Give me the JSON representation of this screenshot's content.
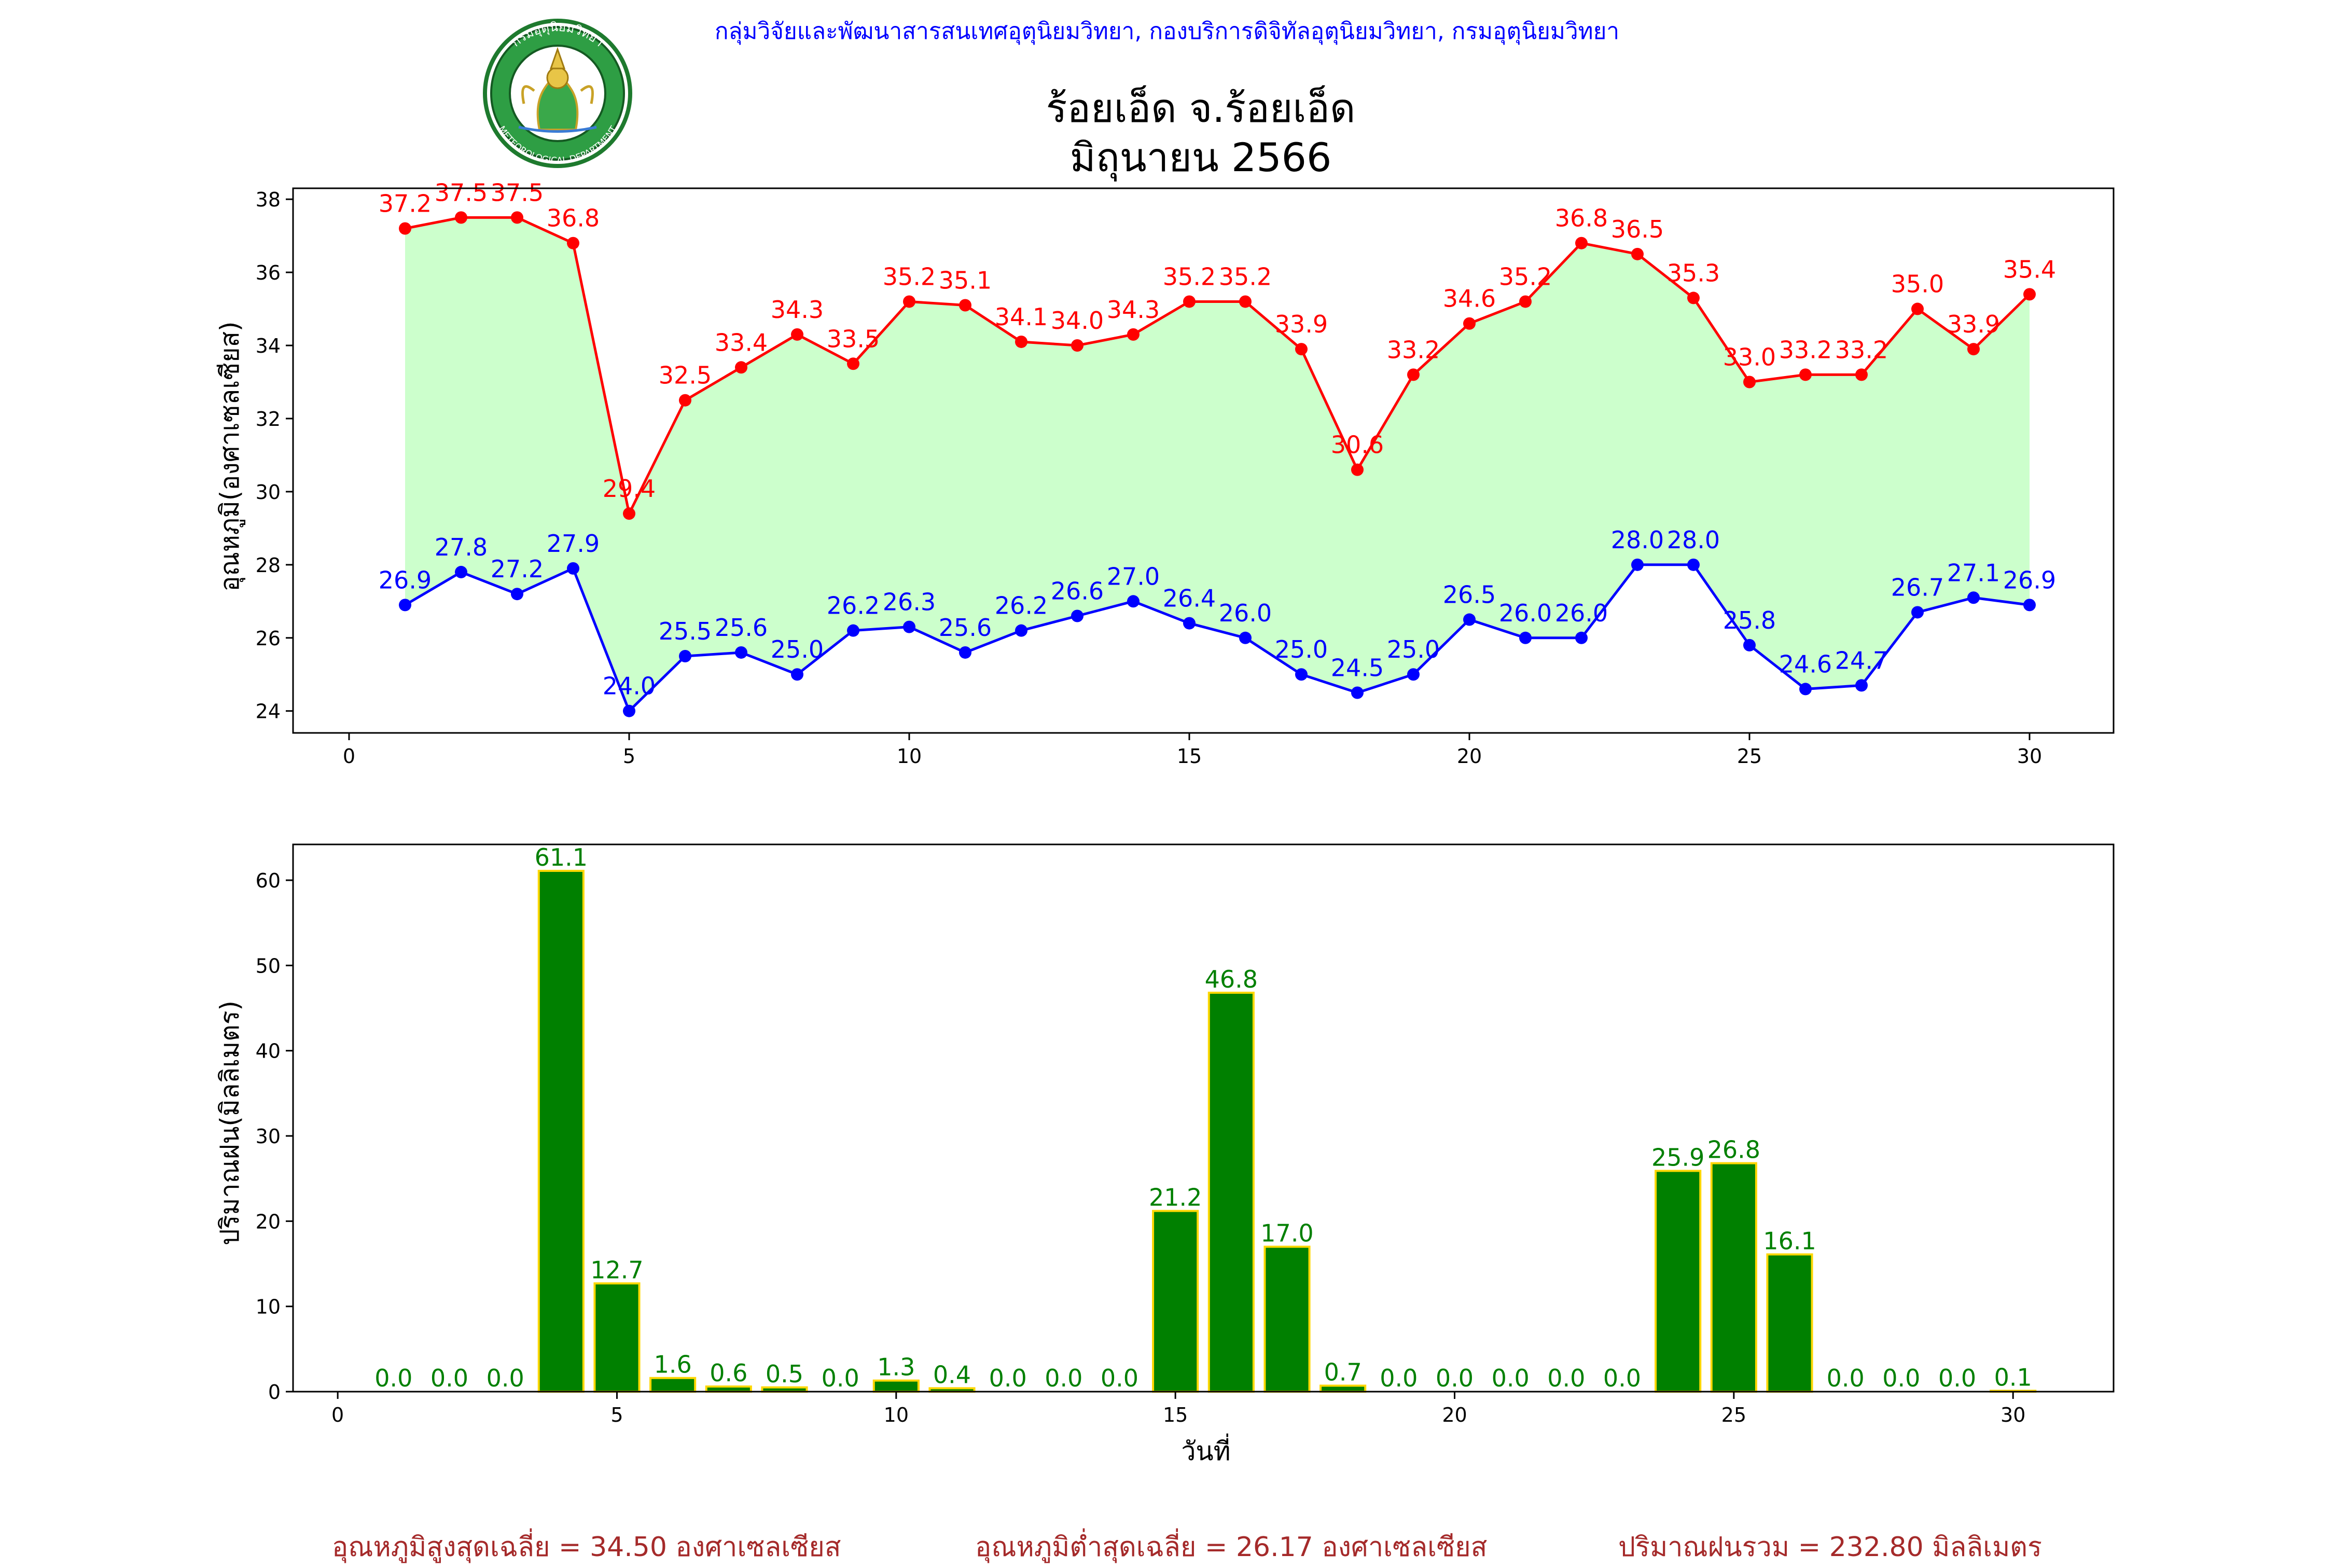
{
  "header": {
    "org_line": "กลุ่มวิจัยและพัฒนาสารสนเทศอุตุนิยมวิทยา, กองบริการดิจิทัลอุตุนิยมวิทยา, กรมอุตุนิยมวิทยา",
    "title_line1": "ร้อยเอ็ด จ.ร้อยเอ็ด",
    "title_line2": "มิถุนายน 2566",
    "logo_top_text": "กรมอุตุนิยมวิทยา",
    "logo_bottom_text": "METEOROLOGICAL DEPARTMENT"
  },
  "colors": {
    "max_line": "#ff0000",
    "min_line": "#0000ff",
    "band_fill": "#ccffcc",
    "bar_fill": "#008000",
    "bar_edge": "#ffd700",
    "footer": "#a52a2a",
    "org_line": "#0000ff"
  },
  "chart_data": [
    {
      "type": "line",
      "ylabel": "อุณหภูมิ(องศาเซลเซียส)",
      "xlim": [
        -1,
        31.5
      ],
      "ylim": [
        23.4,
        38.3
      ],
      "xticks": [
        0,
        5,
        10,
        15,
        20,
        25,
        30
      ],
      "yticks": [
        24,
        26,
        28,
        30,
        32,
        34,
        36,
        38
      ],
      "fill_between": true,
      "x": [
        1,
        2,
        3,
        4,
        5,
        6,
        7,
        8,
        9,
        10,
        11,
        12,
        13,
        14,
        15,
        16,
        17,
        18,
        19,
        20,
        21,
        22,
        23,
        24,
        25,
        26,
        27,
        28,
        29,
        30
      ],
      "series": [
        {
          "key": "max",
          "values": [
            37.2,
            37.5,
            37.5,
            36.8,
            29.4,
            32.5,
            33.4,
            34.3,
            33.5,
            35.2,
            35.1,
            34.1,
            34.0,
            34.3,
            35.2,
            35.2,
            33.9,
            30.6,
            33.2,
            34.6,
            35.2,
            36.8,
            36.5,
            35.3,
            33.0,
            33.2,
            33.2,
            35.0,
            33.9,
            35.4
          ]
        },
        {
          "key": "min",
          "values": [
            26.9,
            27.8,
            27.2,
            27.9,
            24.0,
            25.5,
            25.6,
            25.0,
            26.2,
            26.3,
            25.6,
            26.2,
            26.6,
            27.0,
            26.4,
            26.0,
            25.0,
            24.5,
            25.0,
            26.5,
            26.0,
            26.0,
            28.0,
            28.0,
            25.8,
            24.6,
            24.7,
            26.7,
            27.1,
            26.9
          ]
        }
      ]
    },
    {
      "type": "bar",
      "ylabel": "ปริมาณฝน(มิลลิเมตร)",
      "xlabel": "วันที่",
      "xlim": [
        -0.8,
        31.8
      ],
      "ylim": [
        0,
        64.2
      ],
      "xticks": [
        0,
        5,
        10,
        15,
        20,
        25,
        30
      ],
      "yticks": [
        0,
        10,
        20,
        30,
        40,
        50,
        60
      ],
      "x": [
        1,
        2,
        3,
        4,
        5,
        6,
        7,
        8,
        9,
        10,
        11,
        12,
        13,
        14,
        15,
        16,
        17,
        18,
        19,
        20,
        21,
        22,
        23,
        24,
        25,
        26,
        27,
        28,
        29,
        30
      ],
      "values": [
        0.0,
        0.0,
        0.0,
        61.1,
        12.7,
        1.6,
        0.6,
        0.5,
        0.0,
        1.3,
        0.4,
        0.0,
        0.0,
        0.0,
        21.2,
        46.8,
        17.0,
        0.7,
        0.0,
        0.0,
        0.0,
        0.0,
        0.0,
        25.9,
        26.8,
        16.1,
        0.0,
        0.0,
        0.0,
        0.1
      ]
    }
  ],
  "footer": {
    "avg_max": "อุณหภูมิสูงสุดเฉลี่ย = 34.50 องศาเซลเซียส",
    "avg_min": "อุณหภูมิต่ำสุดเฉลี่ย = 26.17 องศาเซลเซียส",
    "total_rain": "ปริมาณฝนรวม = 232.80 มิลลิเมตร"
  }
}
